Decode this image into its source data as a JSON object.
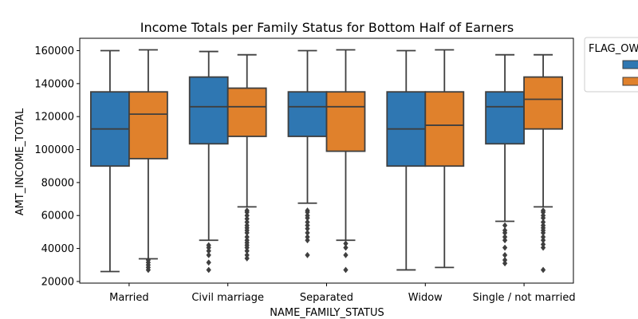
{
  "chart_data": {
    "type": "box",
    "title": "Income Totals per Family Status for Bottom Half of Earners",
    "xlabel": "NAME_FAMILY_STATUS",
    "ylabel": "AMT_INCOME_TOTAL",
    "ylim": [
      19000,
      167500
    ],
    "yticks": [
      20000,
      40000,
      60000,
      80000,
      100000,
      120000,
      140000,
      160000
    ],
    "ytick_labels": [
      "20000",
      "40000",
      "60000",
      "80000",
      "100000",
      "120000",
      "140000",
      "160000"
    ],
    "categories": [
      "Married",
      "Civil marriage",
      "Separated",
      "Widow",
      "Single / not married"
    ],
    "legend": {
      "title": "FLAG_OW",
      "placement": "outside-right",
      "entries": [
        "",
        ""
      ]
    },
    "series": [
      {
        "color": "#2f77b2",
        "boxes": [
          {
            "whisker_low": 26000,
            "q1": 90000,
            "median": 112500,
            "q3": 135000,
            "whisker_high": 160000,
            "outliers": []
          },
          {
            "whisker_low": 45000,
            "q1": 103500,
            "median": 126000,
            "q3": 144000,
            "whisker_high": 159500,
            "outliers": [
              27000,
              31500,
              36000,
              38500,
              40500,
              42000
            ]
          },
          {
            "whisker_low": 67500,
            "q1": 108000,
            "median": 126000,
            "q3": 135000,
            "whisker_high": 160000,
            "outliers": [
              36000,
              45000,
              47000,
              49500,
              52000,
              54000,
              56000,
              58500,
              60000,
              62000,
              63000
            ]
          },
          {
            "whisker_low": 27000,
            "q1": 90000,
            "median": 112500,
            "q3": 135000,
            "whisker_high": 160000,
            "outliers": []
          },
          {
            "whisker_low": 56500,
            "q1": 103500,
            "median": 126000,
            "q3": 135000,
            "whisker_high": 157500,
            "outliers": [
              31000,
              33000,
              36000,
              40500,
              45000,
              47000,
              49500,
              51000,
              54000
            ]
          }
        ]
      },
      {
        "color": "#e0812c",
        "boxes": [
          {
            "whisker_low": 33750,
            "q1": 94500,
            "median": 121500,
            "q3": 135000,
            "whisker_high": 160500,
            "outliers": [
              27000,
              28500,
              30000,
              31500,
              33000
            ]
          },
          {
            "whisker_low": 65250,
            "q1": 108000,
            "median": 126000,
            "q3": 137250,
            "whisker_high": 157500,
            "outliers": [
              34000,
              36000,
              38500,
              40500,
              42000,
              43500,
              45000,
              47000,
              49500,
              51000,
              52500,
              54000,
              56000,
              58000,
              60000,
              62000,
              63000
            ]
          },
          {
            "whisker_low": 45000,
            "q1": 99000,
            "median": 126000,
            "q3": 135000,
            "whisker_high": 160500,
            "outliers": [
              27000,
              36000,
              40500,
              43000
            ]
          },
          {
            "whisker_low": 28500,
            "q1": 90000,
            "median": 114750,
            "q3": 135000,
            "whisker_high": 160500,
            "outliers": []
          },
          {
            "whisker_low": 65250,
            "q1": 112500,
            "median": 130500,
            "q3": 144000,
            "whisker_high": 157500,
            "outliers": [
              27000,
              40500,
              42500,
              45000,
              47000,
              49500,
              51000,
              52500,
              54000,
              56000,
              58500,
              60000,
              62000,
              63000
            ]
          }
        ]
      }
    ]
  }
}
